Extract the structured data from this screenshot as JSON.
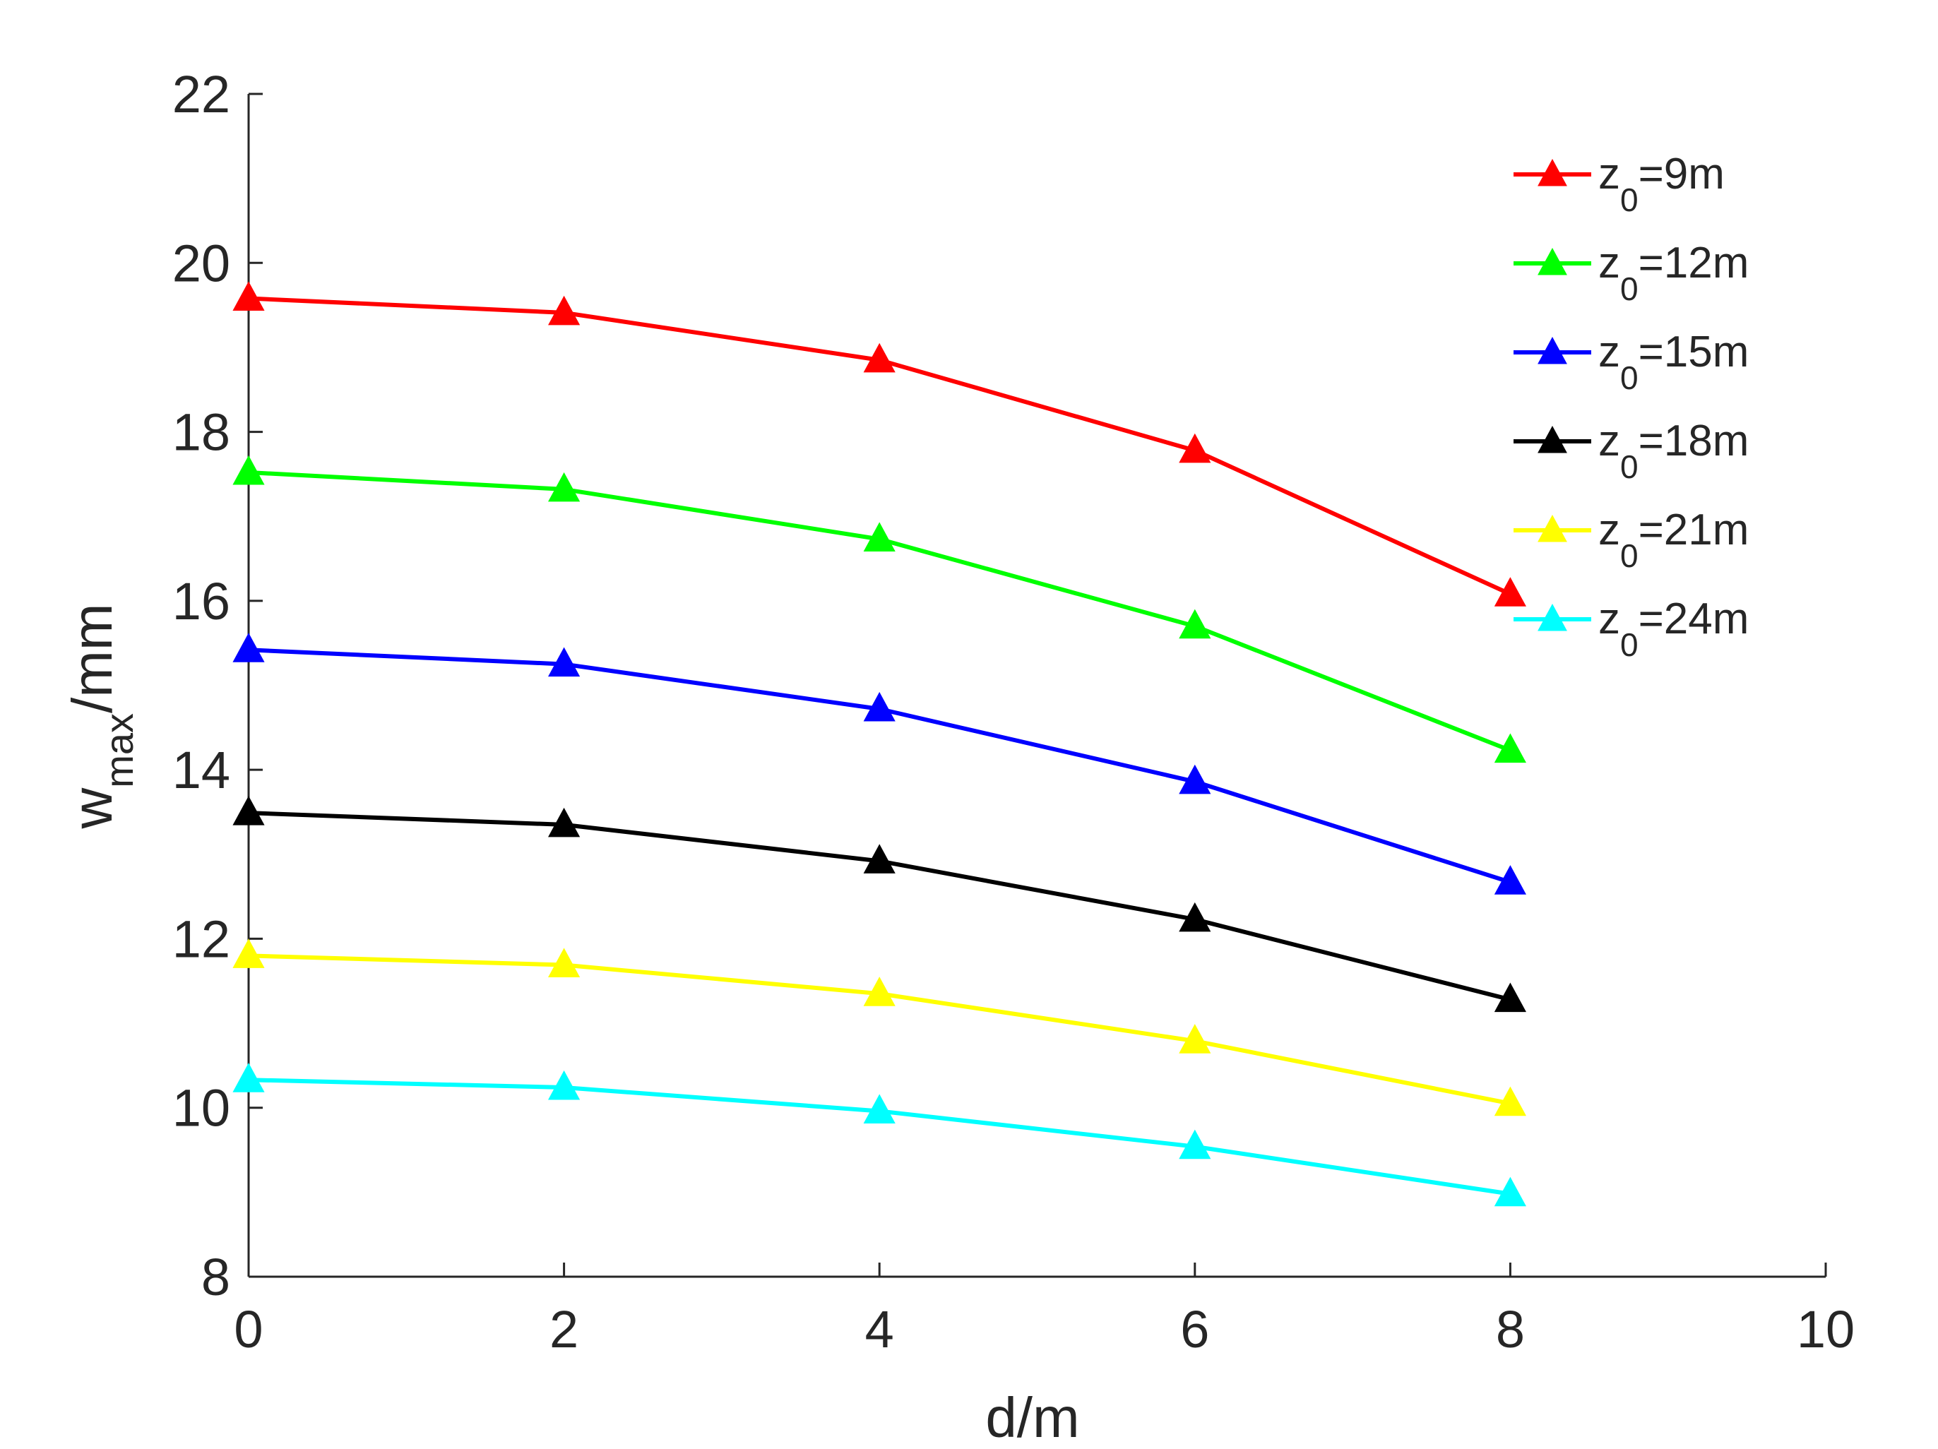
{
  "chart_data": {
    "type": "line",
    "title": "",
    "xlabel": "d/m",
    "ylabel": {
      "main": "w",
      "subscript": "max",
      "suffix": "/mm"
    },
    "xlim": [
      0,
      10
    ],
    "ylim": [
      8,
      22
    ],
    "xticks": [
      0,
      2,
      4,
      6,
      8,
      10
    ],
    "yticks": [
      8,
      10,
      12,
      14,
      16,
      18,
      20,
      22
    ],
    "grid": false,
    "legend_position": "top-right",
    "marker": "triangle",
    "x": [
      0,
      2,
      4,
      6,
      8
    ],
    "series": [
      {
        "name": "z0=9m",
        "label_main": "z",
        "label_sub": "0",
        "label_rest": "=9m",
        "color": "#ff0000",
        "values": [
          19.58,
          19.41,
          18.85,
          17.78,
          16.08
        ]
      },
      {
        "name": "z0=12m",
        "label_main": "z",
        "label_sub": "0",
        "label_rest": "=12m",
        "color": "#00ff00",
        "values": [
          17.52,
          17.32,
          16.73,
          15.7,
          14.23
        ]
      },
      {
        "name": "z0=15m",
        "label_main": "z",
        "label_sub": "0",
        "label_rest": "=15m",
        "color": "#0000ff",
        "values": [
          15.42,
          15.25,
          14.72,
          13.86,
          12.67
        ]
      },
      {
        "name": "z0=18m",
        "label_main": "z",
        "label_sub": "0",
        "label_rest": "=18m",
        "color": "#000000",
        "values": [
          13.49,
          13.35,
          12.92,
          12.23,
          11.28
        ]
      },
      {
        "name": "z0=21m",
        "label_main": "z",
        "label_sub": "0",
        "label_rest": "=21m",
        "color": "#ffff00",
        "values": [
          11.8,
          11.69,
          11.35,
          10.79,
          10.05
        ]
      },
      {
        "name": "z0=24m",
        "label_main": "z",
        "label_sub": "0",
        "label_rest": "=24m",
        "color": "#00ffff",
        "values": [
          10.33,
          10.24,
          9.96,
          9.54,
          8.98
        ]
      }
    ]
  }
}
